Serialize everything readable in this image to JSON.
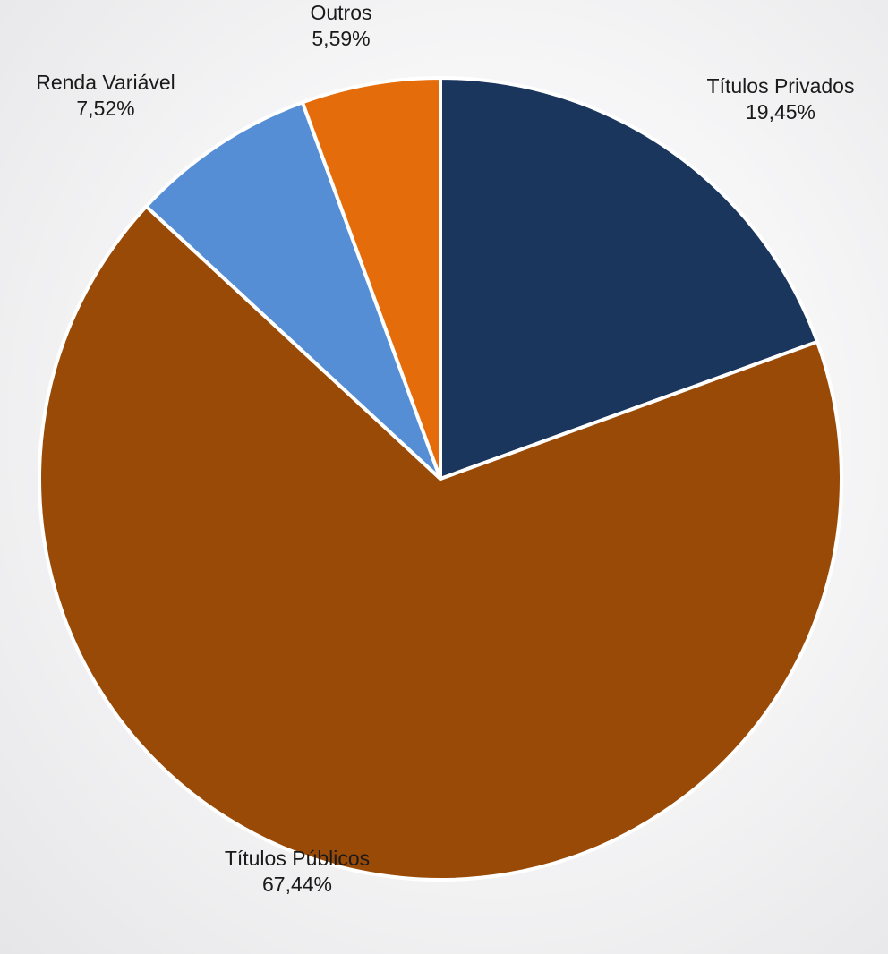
{
  "chart_data": {
    "type": "pie",
    "start_angle_deg": 0,
    "direction": "clockwise",
    "slices": [
      {
        "label": "Títulos Privados",
        "value": 19.45,
        "display": "19,45%",
        "color": "#1b365d"
      },
      {
        "label": "Títulos Públicos",
        "value": 67.44,
        "display": "67,44%",
        "color": "#994a06"
      },
      {
        "label": "Renda Variável",
        "value": 7.52,
        "display": "7,52%",
        "color": "#558ed5"
      },
      {
        "label": "Outros",
        "value": 5.59,
        "display": "5,59%",
        "color": "#e46c0a"
      }
    ]
  }
}
